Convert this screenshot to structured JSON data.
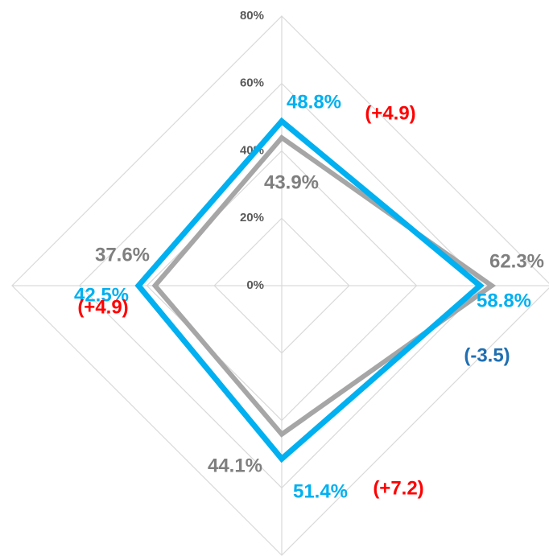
{
  "chart_data": {
    "type": "radar",
    "ylim": [
      0,
      80
    ],
    "yticks": [
      {
        "value": 0,
        "label": "0%"
      },
      {
        "value": 20,
        "label": "20%"
      },
      {
        "value": 40,
        "label": "40%"
      },
      {
        "value": 60,
        "label": "60%"
      },
      {
        "value": 80,
        "label": "80%"
      }
    ],
    "grid": true,
    "series": [
      {
        "color": "#a6a6a6",
        "values": [
          43.9,
          62.3,
          44.1,
          37.6
        ],
        "value_labels": [
          "43.9%",
          "62.3%",
          "44.1%",
          "37.6%"
        ],
        "label_color": "#7f7f7f"
      },
      {
        "color": "#00b0f0",
        "values": [
          48.8,
          58.8,
          51.4,
          42.5
        ],
        "value_labels": [
          "48.8%",
          "58.8%",
          "51.4%",
          "42.5%"
        ],
        "label_color": "#00b0f0",
        "annotations": [
          "(+4.9)",
          "(-3.5)",
          "(+7.2)",
          "(+4.9)"
        ],
        "annotation_colors": [
          "#ff0000",
          "#1f6fb2",
          "#ff0000",
          "#ff0000"
        ]
      }
    ]
  }
}
